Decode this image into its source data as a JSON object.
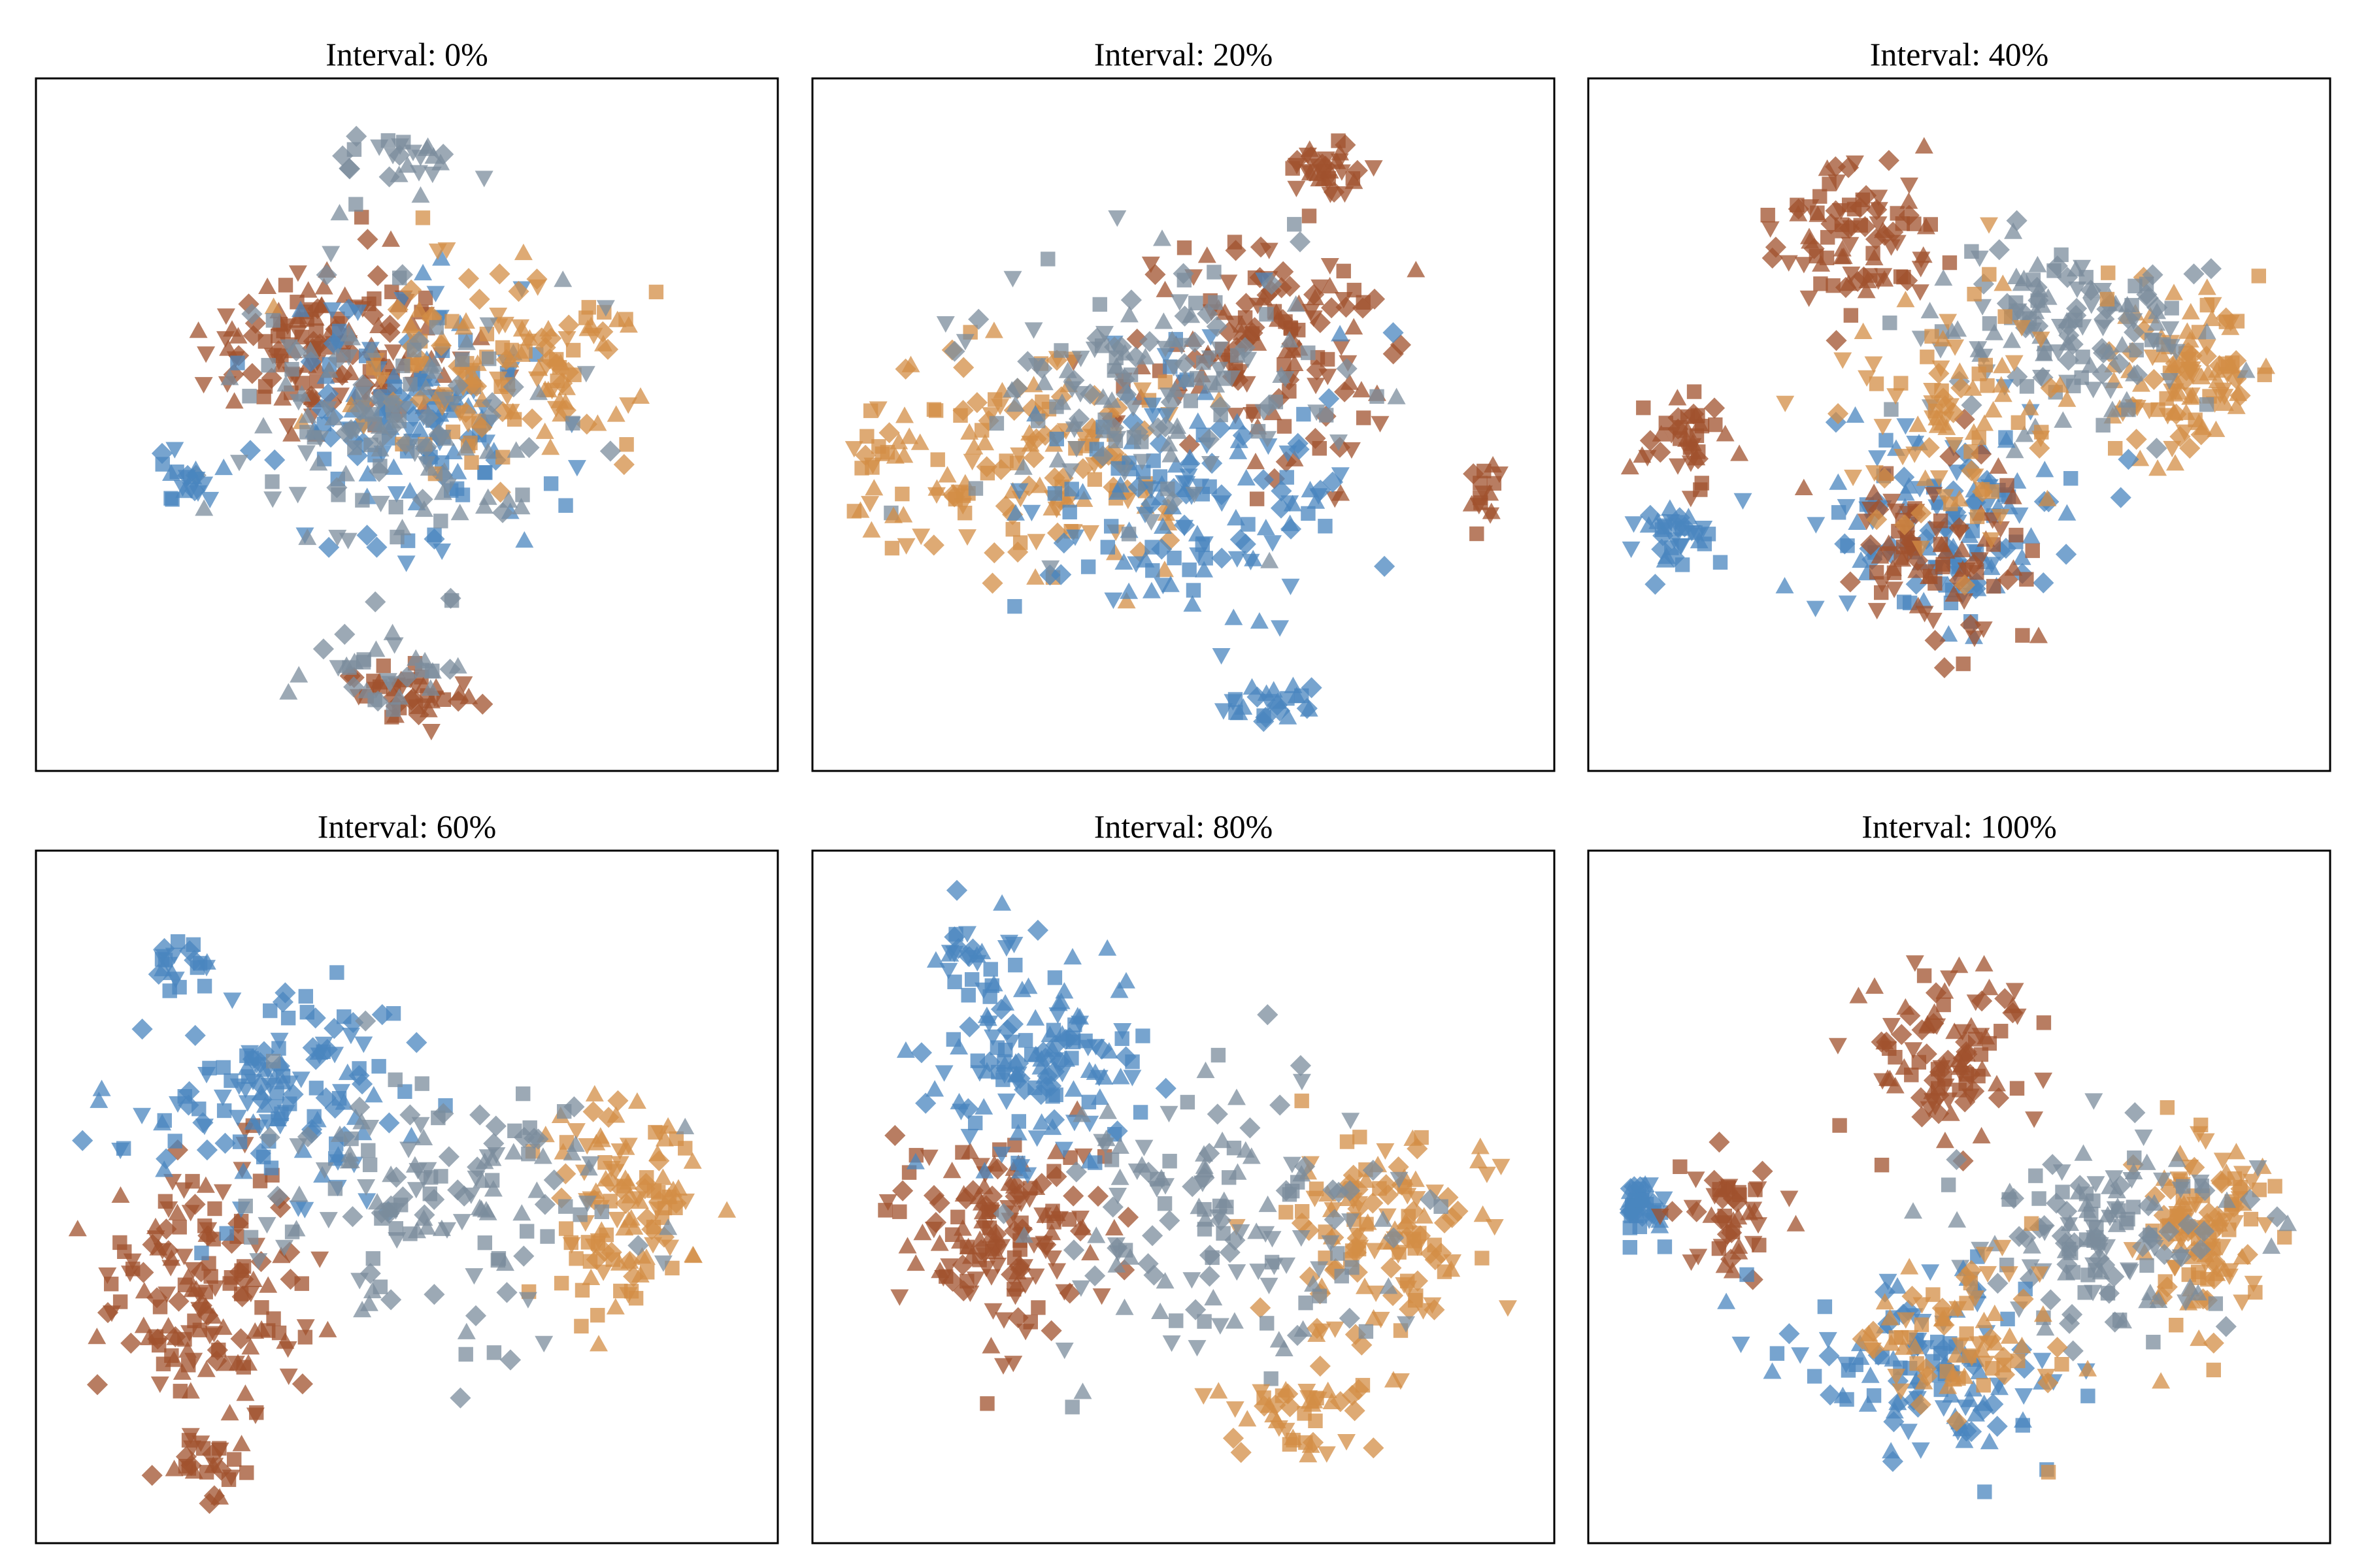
{
  "figure": {
    "marker_alpha": 0.75,
    "colors": {
      "dark_orange": "#a0522d",
      "light_orange": "#d38d45",
      "blue": "#4a86bf",
      "gray": "#7b8c9c"
    },
    "marker_shapes": [
      "square",
      "diamond",
      "triangle-up",
      "triangle-down"
    ]
  },
  "chart_data": [
    {
      "type": "scatter",
      "title": "Interval: 0%",
      "xlabel": "",
      "ylabel": "",
      "xticks": [],
      "yticks": [],
      "xlim": [
        0,
        100
      ],
      "ylim": [
        0,
        100
      ],
      "legend": "none",
      "grid": false,
      "clusters": [
        {
          "color": "dark_orange",
          "center": [
            40,
            62
          ],
          "spread": [
            16,
            12
          ],
          "n": 150
        },
        {
          "color": "blue",
          "center": [
            52,
            52
          ],
          "spread": [
            15,
            16
          ],
          "n": 140
        },
        {
          "color": "light_orange",
          "center": [
            63,
            58
          ],
          "spread": [
            20,
            12
          ],
          "n": 140
        },
        {
          "color": "gray",
          "center": [
            47,
            50
          ],
          "spread": [
            18,
            20
          ],
          "n": 130
        },
        {
          "color": "dark_orange",
          "center": [
            50,
            10
          ],
          "spread": [
            9,
            4
          ],
          "n": 40
        },
        {
          "color": "gray",
          "center": [
            47,
            13
          ],
          "spread": [
            10,
            5
          ],
          "n": 30
        },
        {
          "color": "blue",
          "center": [
            18,
            42
          ],
          "spread": [
            6,
            4
          ],
          "n": 20
        },
        {
          "color": "gray",
          "center": [
            48,
            90
          ],
          "spread": [
            10,
            4
          ],
          "n": 25
        }
      ]
    },
    {
      "type": "scatter",
      "title": "Interval: 20%",
      "xlabel": "",
      "ylabel": "",
      "xticks": [],
      "yticks": [],
      "xlim": [
        0,
        100
      ],
      "ylim": [
        0,
        100
      ],
      "legend": "none",
      "grid": false,
      "clusters": [
        {
          "color": "dark_orange",
          "center": [
            62,
            62
          ],
          "spread": [
            18,
            16
          ],
          "n": 140
        },
        {
          "color": "light_orange",
          "center": [
            30,
            45
          ],
          "spread": [
            20,
            16
          ],
          "n": 140
        },
        {
          "color": "blue",
          "center": [
            52,
            40
          ],
          "spread": [
            20,
            18
          ],
          "n": 140
        },
        {
          "color": "gray",
          "center": [
            45,
            55
          ],
          "spread": [
            22,
            18
          ],
          "n": 140
        },
        {
          "color": "dark_orange",
          "center": [
            70,
            88
          ],
          "spread": [
            5,
            4
          ],
          "n": 35
        },
        {
          "color": "blue",
          "center": [
            62,
            8
          ],
          "spread": [
            7,
            3
          ],
          "n": 25
        },
        {
          "color": "dark_orange",
          "center": [
            92,
            40
          ],
          "spread": [
            3,
            4
          ],
          "n": 15
        },
        {
          "color": "light_orange",
          "center": [
            8,
            45
          ],
          "spread": [
            4,
            10
          ],
          "n": 25
        }
      ]
    },
    {
      "type": "scatter",
      "title": "Interval: 40%",
      "xlabel": "",
      "ylabel": "",
      "xticks": [],
      "yticks": [],
      "xlim": [
        0,
        100
      ],
      "ylim": [
        0,
        100
      ],
      "legend": "none",
      "grid": false,
      "clusters": [
        {
          "color": "dark_orange",
          "center": [
            35,
            78
          ],
          "spread": [
            10,
            10
          ],
          "n": 90
        },
        {
          "color": "dark_orange",
          "center": [
            12,
            48
          ],
          "spread": [
            6,
            7
          ],
          "n": 40
        },
        {
          "color": "blue",
          "center": [
            10,
            33
          ],
          "spread": [
            5,
            6
          ],
          "n": 35
        },
        {
          "color": "light_orange",
          "center": [
            82,
            57
          ],
          "spread": [
            10,
            10
          ],
          "n": 110
        },
        {
          "color": "gray",
          "center": [
            65,
            65
          ],
          "spread": [
            20,
            13
          ],
          "n": 140
        },
        {
          "color": "blue",
          "center": [
            48,
            35
          ],
          "spread": [
            16,
            14
          ],
          "n": 130
        },
        {
          "color": "dark_orange",
          "center": [
            45,
            30
          ],
          "spread": [
            14,
            12
          ],
          "n": 90
        },
        {
          "color": "light_orange",
          "center": [
            50,
            50
          ],
          "spread": [
            18,
            18
          ],
          "n": 90
        }
      ]
    },
    {
      "type": "scatter",
      "title": "Interval: 60%",
      "xlabel": "",
      "ylabel": "",
      "xticks": [],
      "yticks": [],
      "xlim": [
        0,
        100
      ],
      "ylim": [
        0,
        100
      ],
      "legend": "none",
      "grid": false,
      "clusters": [
        {
          "color": "dark_orange",
          "center": [
            22,
            35
          ],
          "spread": [
            12,
            20
          ],
          "n": 150
        },
        {
          "color": "blue",
          "center": [
            32,
            65
          ],
          "spread": [
            16,
            14
          ],
          "n": 140
        },
        {
          "color": "light_orange",
          "center": [
            80,
            48
          ],
          "spread": [
            9,
            14
          ],
          "n": 120
        },
        {
          "color": "gray",
          "center": [
            55,
            50
          ],
          "spread": [
            22,
            16
          ],
          "n": 140
        },
        {
          "color": "blue",
          "center": [
            18,
            85
          ],
          "spread": [
            4,
            4
          ],
          "n": 20
        },
        {
          "color": "dark_orange",
          "center": [
            22,
            10
          ],
          "spread": [
            5,
            4
          ],
          "n": 25
        }
      ]
    },
    {
      "type": "scatter",
      "title": "Interval: 80%",
      "xlabel": "",
      "ylabel": "",
      "xticks": [],
      "yticks": [],
      "xlim": [
        0,
        100
      ],
      "ylim": [
        0,
        100
      ],
      "legend": "none",
      "grid": false,
      "clusters": [
        {
          "color": "dark_orange",
          "center": [
            25,
            45
          ],
          "spread": [
            12,
            15
          ],
          "n": 150
        },
        {
          "color": "blue",
          "center": [
            30,
            70
          ],
          "spread": [
            14,
            15
          ],
          "n": 140
        },
        {
          "color": "light_orange",
          "center": [
            78,
            45
          ],
          "spread": [
            12,
            14
          ],
          "n": 130
        },
        {
          "color": "gray",
          "center": [
            55,
            45
          ],
          "spread": [
            22,
            18
          ],
          "n": 140
        },
        {
          "color": "light_orange",
          "center": [
            65,
            18
          ],
          "spread": [
            10,
            6
          ],
          "n": 45
        },
        {
          "color": "blue",
          "center": [
            20,
            85
          ],
          "spread": [
            5,
            5
          ],
          "n": 20
        }
      ]
    },
    {
      "type": "scatter",
      "title": "Interval: 100%",
      "xlabel": "",
      "ylabel": "",
      "xticks": [],
      "yticks": [],
      "xlim": [
        0,
        100
      ],
      "ylim": [
        0,
        100
      ],
      "legend": "none",
      "grid": false,
      "clusters": [
        {
          "color": "dark_orange",
          "center": [
            48,
            72
          ],
          "spread": [
            12,
            12
          ],
          "n": 100
        },
        {
          "color": "blue",
          "center": [
            5,
            48
          ],
          "spread": [
            3,
            4
          ],
          "n": 40
        },
        {
          "color": "dark_orange",
          "center": [
            18,
            48
          ],
          "spread": [
            6,
            8
          ],
          "n": 50
        },
        {
          "color": "light_orange",
          "center": [
            85,
            45
          ],
          "spread": [
            7,
            14
          ],
          "n": 120
        },
        {
          "color": "gray",
          "center": [
            70,
            45
          ],
          "spread": [
            18,
            15
          ],
          "n": 140
        },
        {
          "color": "blue",
          "center": [
            45,
            25
          ],
          "spread": [
            18,
            12
          ],
          "n": 120
        },
        {
          "color": "light_orange",
          "center": [
            50,
            30
          ],
          "spread": [
            15,
            12
          ],
          "n": 80
        }
      ]
    }
  ]
}
